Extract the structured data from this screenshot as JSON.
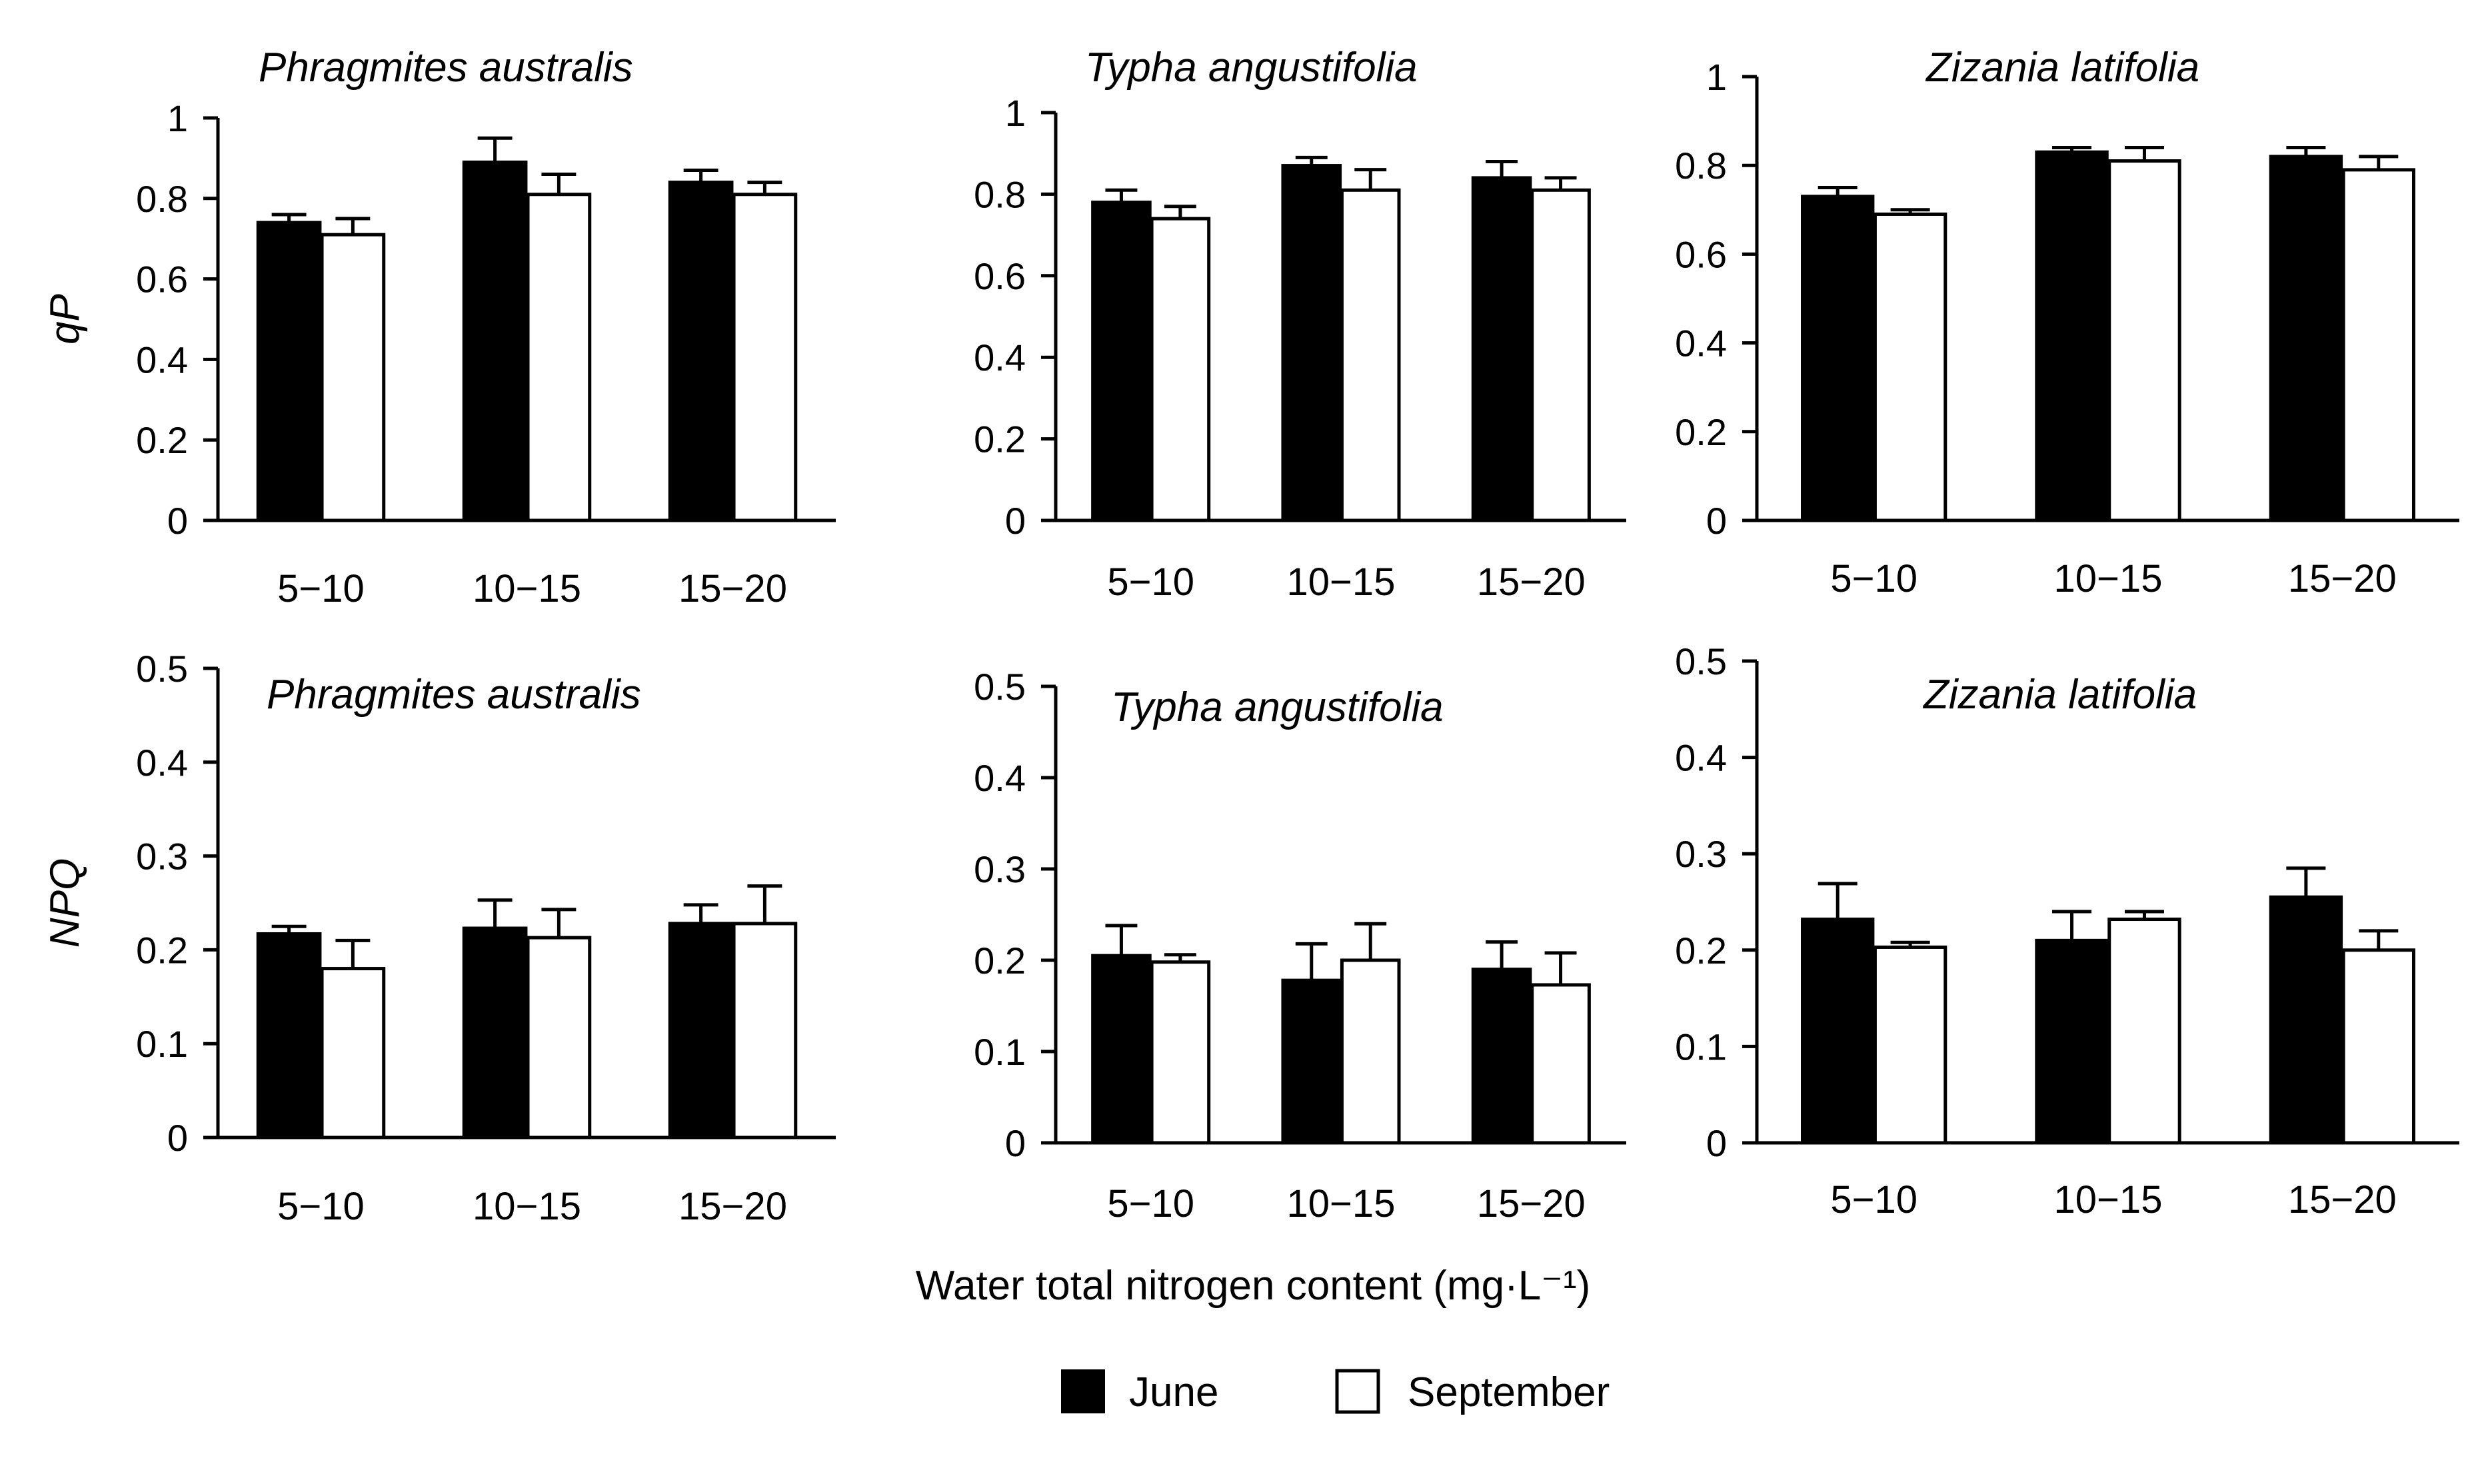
{
  "legend": {
    "june_label": "June",
    "september_label": "September"
  },
  "x_axis_title": "Water total nitrogen content (mg·L⁻¹)",
  "colors": {
    "june": "#000000",
    "september": "#ffffff"
  },
  "chart_data": [
    {
      "type": "bar",
      "title": "Phragmites australis",
      "ylabel": "qP",
      "categories": [
        "5−10",
        "10−15",
        "15−20"
      ],
      "ylim": [
        0,
        1
      ],
      "yticks": [
        "0",
        "0.2",
        "0.4",
        "0.6",
        "0.8",
        "1"
      ],
      "series": [
        {
          "name": "June",
          "values": [
            0.74,
            0.89,
            0.84
          ],
          "errors": [
            0.02,
            0.06,
            0.03
          ]
        },
        {
          "name": "September",
          "values": [
            0.71,
            0.81,
            0.81
          ],
          "errors": [
            0.04,
            0.05,
            0.03
          ]
        }
      ]
    },
    {
      "type": "bar",
      "title": "Typha angustifolia",
      "ylabel": "",
      "categories": [
        "5−10",
        "10−15",
        "15−20"
      ],
      "ylim": [
        0,
        1
      ],
      "yticks": [
        "0",
        "0.2",
        "0.4",
        "0.6",
        "0.8",
        "1"
      ],
      "series": [
        {
          "name": "June",
          "values": [
            0.78,
            0.87,
            0.84
          ],
          "errors": [
            0.03,
            0.02,
            0.04
          ]
        },
        {
          "name": "September",
          "values": [
            0.74,
            0.81,
            0.81
          ],
          "errors": [
            0.03,
            0.05,
            0.03
          ]
        }
      ]
    },
    {
      "type": "bar",
      "title": "Zizania latifolia",
      "ylabel": "",
      "categories": [
        "5−10",
        "10−15",
        "15−20"
      ],
      "ylim": [
        0,
        1
      ],
      "yticks": [
        "0",
        "0.2",
        "0.4",
        "0.6",
        "0.8",
        "1"
      ],
      "series": [
        {
          "name": "June",
          "values": [
            0.73,
            0.83,
            0.82
          ],
          "errors": [
            0.02,
            0.01,
            0.02
          ]
        },
        {
          "name": "September",
          "values": [
            0.69,
            0.81,
            0.79
          ],
          "errors": [
            0.01,
            0.03,
            0.03
          ]
        }
      ]
    },
    {
      "type": "bar",
      "title": "Phragmites australis",
      "ylabel": "NPQ",
      "categories": [
        "5−10",
        "10−15",
        "15−20"
      ],
      "ylim": [
        0,
        0.5
      ],
      "yticks": [
        "0",
        "0.1",
        "0.2",
        "0.3",
        "0.4",
        "0.5"
      ],
      "series": [
        {
          "name": "June",
          "values": [
            0.217,
            0.223,
            0.228
          ],
          "errors": [
            0.008,
            0.03,
            0.02
          ]
        },
        {
          "name": "September",
          "values": [
            0.18,
            0.213,
            0.228
          ],
          "errors": [
            0.03,
            0.03,
            0.04
          ]
        }
      ]
    },
    {
      "type": "bar",
      "title": "Typha angustifolia",
      "ylabel": "",
      "categories": [
        "5−10",
        "10−15",
        "15−20"
      ],
      "ylim": [
        0,
        0.5
      ],
      "yticks": [
        "0",
        "0.1",
        "0.2",
        "0.3",
        "0.4",
        "0.5"
      ],
      "series": [
        {
          "name": "June",
          "values": [
            0.205,
            0.178,
            0.19
          ],
          "errors": [
            0.033,
            0.04,
            0.03
          ]
        },
        {
          "name": "September",
          "values": [
            0.198,
            0.2,
            0.173
          ],
          "errors": [
            0.008,
            0.04,
            0.035
          ]
        }
      ]
    },
    {
      "type": "bar",
      "title": "Zizania latifolia",
      "ylabel": "",
      "categories": [
        "5−10",
        "10−15",
        "15−20"
      ],
      "ylim": [
        0,
        0.5
      ],
      "yticks": [
        "0",
        "0.1",
        "0.2",
        "0.3",
        "0.4",
        "0.5"
      ],
      "series": [
        {
          "name": "June",
          "values": [
            0.232,
            0.21,
            0.255
          ],
          "errors": [
            0.037,
            0.03,
            0.03
          ]
        },
        {
          "name": "September",
          "values": [
            0.203,
            0.232,
            0.2
          ],
          "errors": [
            0.005,
            0.008,
            0.02
          ]
        }
      ]
    }
  ]
}
